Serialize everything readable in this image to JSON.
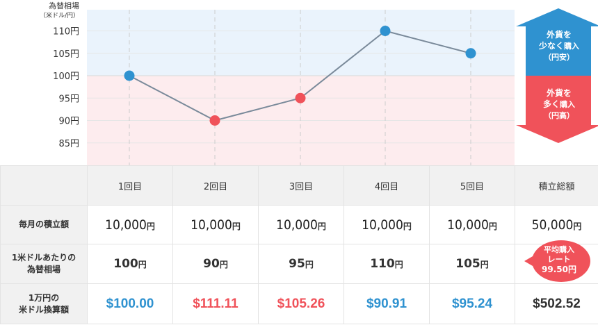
{
  "chart_data": {
    "type": "line",
    "title": "為替相場",
    "ytitle": "為替相場",
    "ysubtitle": "（米ドル/円）",
    "categories": [
      "1回目",
      "2回目",
      "3回目",
      "4回目",
      "5回目"
    ],
    "values": [
      100,
      90,
      95,
      110,
      105
    ],
    "point_colors": [
      "blue",
      "red",
      "red",
      "blue",
      "blue"
    ],
    "yticks": [
      "110円",
      "105円",
      "100円",
      "95円",
      "90円",
      "85円"
    ],
    "ytick_values": [
      110,
      105,
      100,
      95,
      90,
      85
    ],
    "ylim": [
      80,
      116
    ],
    "baseline": 100,
    "grid": true
  },
  "colors": {
    "blue": "#2f92d0",
    "red": "#f0525a",
    "line": "#7a8a9a",
    "upper_band": "#eaf3fc",
    "lower_band": "#fdecee",
    "header_bg": "#f1f1f1"
  },
  "arrows": {
    "up_line1": "外貨を",
    "up_line2a": "少なく",
    "up_line2b": "購入",
    "up_line3": "（円安）",
    "down_line1": "外貨を",
    "down_line2a": "多く",
    "down_line2b": "購入",
    "down_line3": "（円高）"
  },
  "table": {
    "headers": [
      "1回目",
      "2回目",
      "3回目",
      "4回目",
      "5回目",
      "積立総額"
    ],
    "monthly_label": "毎月の積立額",
    "monthly": [
      "10,000",
      "10,000",
      "10,000",
      "10,000",
      "10,000",
      "50,000"
    ],
    "yen": "円",
    "rate_label_1": "1米ドルあたりの",
    "rate_label_2": "為替相場",
    "rates": [
      "100",
      "90",
      "95",
      "110",
      "105"
    ],
    "usd_label_1": "1万円の",
    "usd_label_2": "米ドル換算額",
    "usd": [
      "$100.00",
      "$111.11",
      "$105.26",
      "$90.91",
      "$95.24",
      "$502.52"
    ]
  },
  "average": {
    "line1": "平均購入",
    "line2": "レート",
    "value": "99.50円"
  }
}
